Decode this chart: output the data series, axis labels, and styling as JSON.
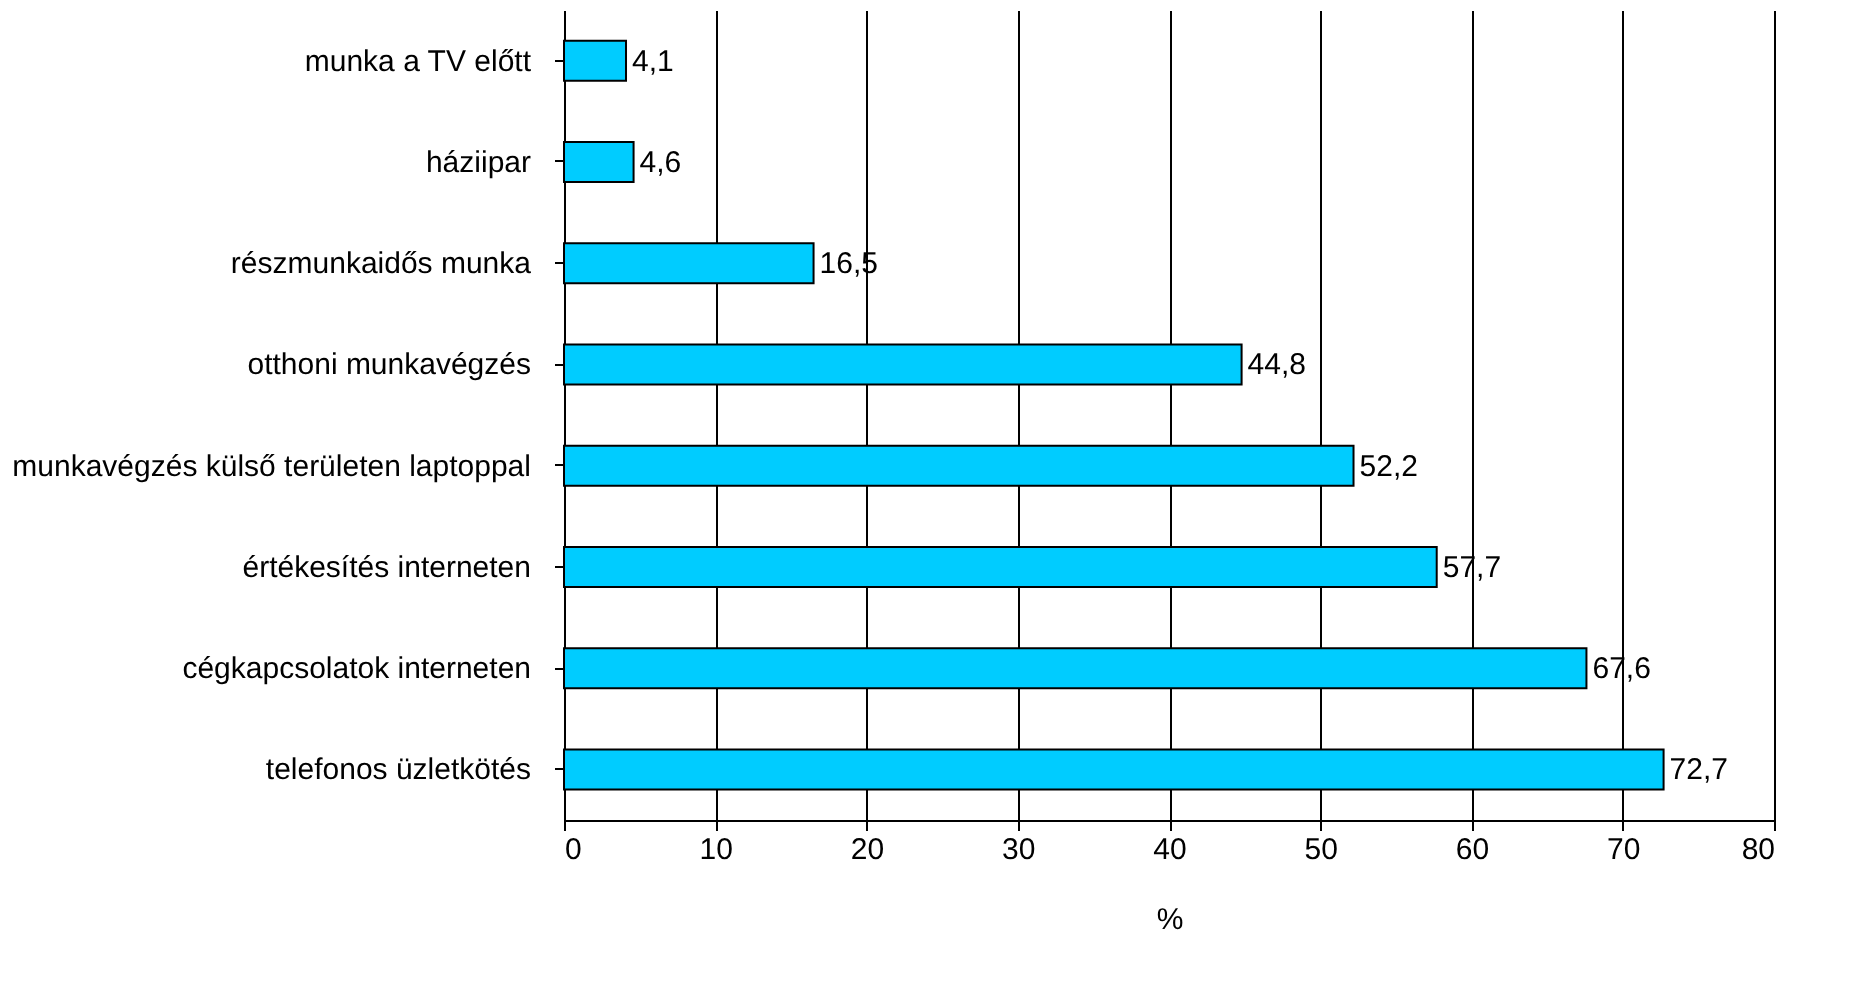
{
  "chart_data": {
    "type": "bar",
    "orientation": "horizontal",
    "categories": [
      "munka a TV előtt",
      "háziipar",
      "részmunkaidős munka",
      "otthoni munkavégzés",
      "munkavégzés külső területen laptoppal",
      "értékesítés interneten",
      "cégkapcsolatok interneten",
      "telefonos üzletkötés"
    ],
    "values": [
      4.1,
      4.6,
      16.5,
      44.8,
      52.2,
      57.7,
      67.6,
      72.7
    ],
    "value_labels": [
      "4,1",
      "4,6",
      "16,5",
      "44,8",
      "52,2",
      "57,7",
      "67,6",
      "72,7"
    ],
    "color": "#00ccff",
    "xlim": [
      0,
      80
    ],
    "xticks": [
      0,
      10,
      20,
      30,
      40,
      50,
      60,
      70,
      80
    ],
    "xlabel": "%",
    "grid": "x"
  }
}
